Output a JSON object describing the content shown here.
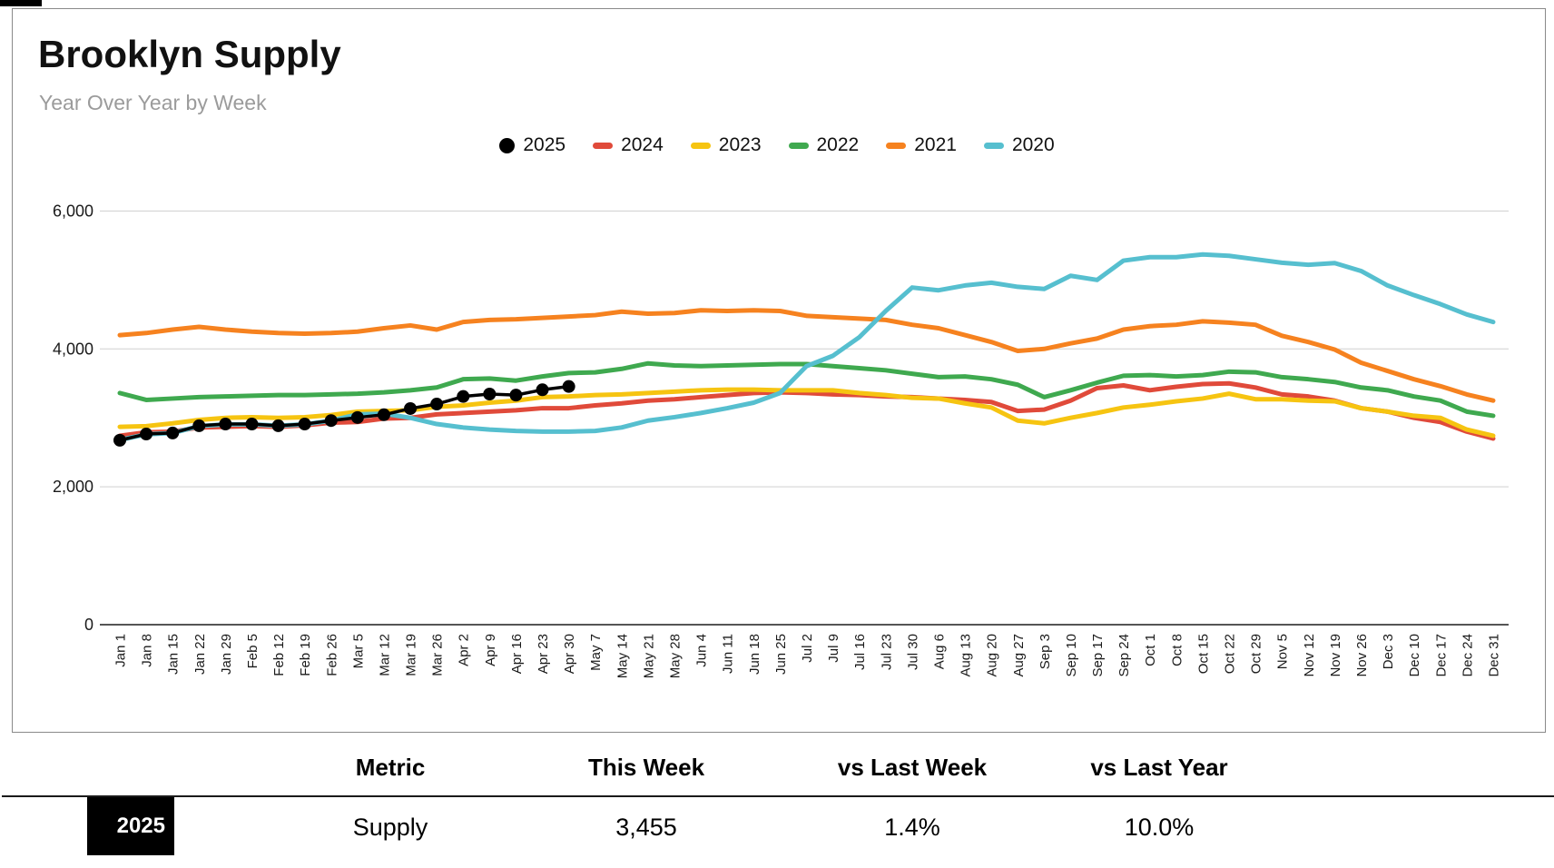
{
  "header": {
    "title": "Brooklyn Supply",
    "subtitle": "Year Over Year by Week"
  },
  "chart_data": {
    "type": "line",
    "title": "Brooklyn Supply",
    "subtitle": "Year Over Year by Week",
    "legend_position": "top-center",
    "grid": "horizontal",
    "ylim": [
      0,
      6400
    ],
    "y_ticks": [
      0,
      2000,
      4000,
      6000
    ],
    "y_tick_labels": [
      "0",
      "2,000",
      "4,000",
      "6,000"
    ],
    "x_labels": [
      "Jan 1",
      "Jan 8",
      "Jan 15",
      "Jan 22",
      "Jan 29",
      "Feb 5",
      "Feb 12",
      "Feb 19",
      "Feb 26",
      "Mar 5",
      "Mar 12",
      "Mar 19",
      "Mar 26",
      "Apr 2",
      "Apr 9",
      "Apr 16",
      "Apr 23",
      "Apr 30",
      "May 7",
      "May 14",
      "May 21",
      "May 28",
      "Jun 4",
      "Jun 11",
      "Jun 18",
      "Jun 25",
      "Jul 2",
      "Jul 9",
      "Jul 16",
      "Jul 23",
      "Jul 30",
      "Aug 6",
      "Aug 13",
      "Aug 20",
      "Aug 27",
      "Sep 3",
      "Sep 10",
      "Sep 17",
      "Sep 24",
      "Oct 1",
      "Oct 8",
      "Oct 15",
      "Oct 22",
      "Oct 29",
      "Nov 5",
      "Nov 12",
      "Nov 19",
      "Nov 26",
      "Dec 3",
      "Dec 10",
      "Dec 17",
      "Dec 24",
      "Dec 31"
    ],
    "series": [
      {
        "name": "2025",
        "color": "#000000",
        "marker": "circle",
        "values": [
          2675,
          2765,
          2780,
          2885,
          2910,
          2910,
          2885,
          2910,
          2960,
          3005,
          3045,
          3135,
          3200,
          3310,
          3345,
          3330,
          3407,
          3455,
          null,
          null,
          null,
          null,
          null,
          null,
          null,
          null,
          null,
          null,
          null,
          null,
          null,
          null,
          null,
          null,
          null,
          null,
          null,
          null,
          null,
          null,
          null,
          null,
          null,
          null,
          null,
          null,
          null,
          null,
          null,
          null,
          null,
          null,
          null
        ]
      },
      {
        "name": "2024",
        "color": "#e04a3a",
        "marker": "line",
        "values": [
          2740,
          2790,
          2800,
          2860,
          2870,
          2880,
          2870,
          2890,
          2930,
          2940,
          2990,
          3000,
          3050,
          3070,
          3090,
          3110,
          3140,
          3140,
          3180,
          3210,
          3250,
          3270,
          3300,
          3330,
          3360,
          3370,
          3360,
          3340,
          3330,
          3310,
          3300,
          3280,
          3260,
          3230,
          3100,
          3120,
          3250,
          3430,
          3470,
          3400,
          3450,
          3490,
          3500,
          3440,
          3340,
          3310,
          3250,
          3140,
          3090,
          3000,
          2940,
          2800,
          2700
        ]
      },
      {
        "name": "2023",
        "color": "#f6c411",
        "marker": "line",
        "values": [
          2870,
          2880,
          2920,
          2970,
          3000,
          3010,
          3000,
          3010,
          3040,
          3090,
          3100,
          3110,
          3160,
          3180,
          3220,
          3250,
          3300,
          3310,
          3330,
          3340,
          3360,
          3380,
          3400,
          3410,
          3410,
          3400,
          3400,
          3400,
          3360,
          3330,
          3290,
          3280,
          3210,
          3150,
          2960,
          2920,
          3000,
          3070,
          3150,
          3190,
          3240,
          3280,
          3350,
          3270,
          3270,
          3250,
          3240,
          3140,
          3090,
          3030,
          3000,
          2830,
          2740
        ]
      },
      {
        "name": "2022",
        "color": "#3fa94f",
        "marker": "line",
        "values": [
          3360,
          3260,
          3280,
          3300,
          3310,
          3320,
          3330,
          3330,
          3340,
          3350,
          3370,
          3400,
          3440,
          3560,
          3570,
          3540,
          3600,
          3650,
          3660,
          3710,
          3790,
          3760,
          3750,
          3760,
          3770,
          3780,
          3780,
          3750,
          3720,
          3690,
          3640,
          3590,
          3600,
          3560,
          3480,
          3300,
          3400,
          3510,
          3610,
          3620,
          3600,
          3620,
          3670,
          3660,
          3590,
          3560,
          3520,
          3440,
          3400,
          3310,
          3250,
          3090,
          3030
        ]
      },
      {
        "name": "2021",
        "color": "#f6821f",
        "marker": "line",
        "values": [
          4200,
          4230,
          4280,
          4320,
          4280,
          4250,
          4230,
          4220,
          4230,
          4250,
          4300,
          4340,
          4280,
          4390,
          4420,
          4430,
          4450,
          4470,
          4490,
          4540,
          4510,
          4520,
          4560,
          4550,
          4560,
          4550,
          4480,
          4460,
          4440,
          4420,
          4350,
          4300,
          4200,
          4100,
          3970,
          4000,
          4080,
          4150,
          4280,
          4330,
          4350,
          4400,
          4380,
          4350,
          4190,
          4100,
          3990,
          3800,
          3680,
          3560,
          3460,
          3340,
          3250
        ]
      },
      {
        "name": "2020",
        "color": "#56bfcf",
        "marker": "line",
        "values": [
          2680,
          2760,
          2780,
          2880,
          2905,
          2905,
          2885,
          2905,
          2960,
          3050,
          3060,
          3000,
          2910,
          2860,
          2830,
          2810,
          2800,
          2800,
          2810,
          2860,
          2960,
          3010,
          3070,
          3140,
          3220,
          3360,
          3750,
          3900,
          4170,
          4550,
          4890,
          4850,
          4920,
          4960,
          4900,
          4870,
          5060,
          5000,
          5280,
          5330,
          5330,
          5370,
          5350,
          5300,
          5250,
          5220,
          5245,
          5130,
          4920,
          4780,
          4650,
          4500,
          4390
        ]
      }
    ]
  },
  "table": {
    "headers": [
      "Metric",
      "This Week",
      "vs Last Week",
      "vs Last Year"
    ],
    "row": {
      "badge": "2025",
      "metric": "Supply",
      "this_week": "3,455",
      "vs_last_week": "1.4%",
      "vs_last_year": "10.0%"
    }
  }
}
